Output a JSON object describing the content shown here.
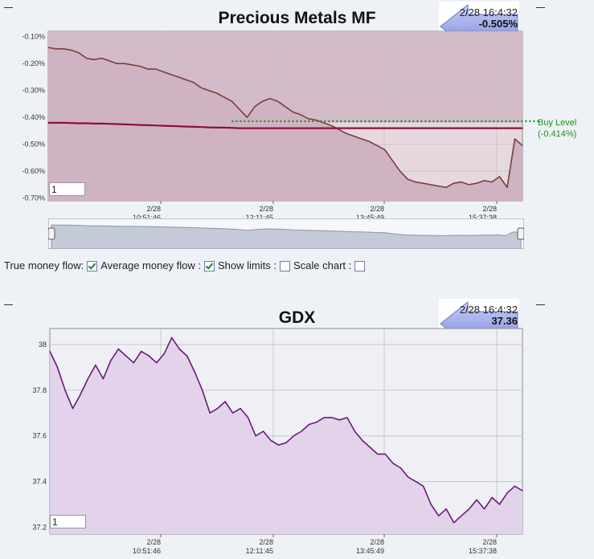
{
  "chart_data": [
    {
      "type": "area",
      "title": "Precious Metals MF",
      "callout": {
        "timestamp": "2/28 16:4:32",
        "value": "-0.505%"
      },
      "y_tick_labels": [
        "-0.10%",
        "-0.20%",
        "-0.30%",
        "-0.40%",
        "-0.50%",
        "-0.60%",
        "-0.70%"
      ],
      "x_tick_labels": [
        {
          "date": "2/28",
          "time": "10:51:46"
        },
        {
          "date": "2/28",
          "time": "12:11:45"
        },
        {
          "date": "2/28",
          "time": "13:45:49"
        },
        {
          "date": "2/28",
          "time": "15:37:38"
        }
      ],
      "ylim": [
        -0.71,
        -0.08
      ],
      "grid": true,
      "series": [
        {
          "name": "True money flow",
          "color": "#7a3d3d",
          "values": [
            -0.14,
            -0.145,
            -0.145,
            -0.15,
            -0.16,
            -0.18,
            -0.185,
            -0.18,
            -0.19,
            -0.2,
            -0.2,
            -0.205,
            -0.21,
            -0.22,
            -0.22,
            -0.23,
            -0.24,
            -0.25,
            -0.26,
            -0.27,
            -0.29,
            -0.3,
            -0.31,
            -0.325,
            -0.34,
            -0.37,
            -0.4,
            -0.36,
            -0.34,
            -0.33,
            -0.34,
            -0.36,
            -0.38,
            -0.39,
            -0.405,
            -0.41,
            -0.42,
            -0.43,
            -0.445,
            -0.46,
            -0.47,
            -0.48,
            -0.49,
            -0.505,
            -0.52,
            -0.56,
            -0.6,
            -0.63,
            -0.64,
            -0.645,
            -0.65,
            -0.655,
            -0.66,
            -0.645,
            -0.64,
            -0.65,
            -0.645,
            -0.635,
            -0.64,
            -0.62,
            -0.66,
            -0.48,
            -0.505
          ]
        },
        {
          "name": "Average money flow",
          "color": "#8b1040",
          "values": [
            -0.42,
            -0.42,
            -0.42,
            -0.421,
            -0.422,
            -0.422,
            -0.423,
            -0.423,
            -0.424,
            -0.425,
            -0.426,
            -0.427,
            -0.428,
            -0.429,
            -0.43,
            -0.431,
            -0.432,
            -0.433,
            -0.434,
            -0.435,
            -0.436,
            -0.437,
            -0.438,
            -0.438,
            -0.439,
            -0.44,
            -0.44,
            -0.44,
            -0.44,
            -0.44,
            -0.44,
            -0.44,
            -0.44,
            -0.44,
            -0.44,
            -0.44,
            -0.44,
            -0.44,
            -0.44,
            -0.44,
            -0.44,
            -0.44,
            -0.44,
            -0.44,
            -0.44,
            -0.44,
            -0.44,
            -0.44,
            -0.44,
            -0.44,
            -0.44,
            -0.44,
            -0.44,
            -0.44,
            -0.44,
            -0.44,
            -0.44,
            -0.44,
            -0.44,
            -0.44,
            -0.44,
            -0.44,
            -0.44
          ]
        }
      ],
      "buy_level": {
        "value": -0.414,
        "label": "Buy Level",
        "label_value": "(-0.414%)",
        "color": "#1f8f1f"
      },
      "zoom_value": "1",
      "controls": [
        {
          "label": "True money flow:",
          "checked": true
        },
        {
          "label": "Average money flow :",
          "checked": true
        },
        {
          "label": "Show limits :",
          "checked": false
        },
        {
          "label": "Scale chart :",
          "checked": false
        }
      ]
    },
    {
      "type": "area",
      "title": "GDX",
      "callout": {
        "timestamp": "2/28 16:4:32",
        "value": "37.36"
      },
      "y_tick_labels": [
        "38",
        "37.8",
        "37.6",
        "37.4",
        "37.2"
      ],
      "x_tick_labels": [
        {
          "date": "2/28",
          "time": "10:51:46"
        },
        {
          "date": "2/28",
          "time": "12:11:45"
        },
        {
          "date": "2/28",
          "time": "13:45:49"
        },
        {
          "date": "2/28",
          "time": "15:37:38"
        }
      ],
      "ylim": [
        37.17,
        38.07
      ],
      "grid": true,
      "series": [
        {
          "name": "GDX",
          "color": "#6a1a7a",
          "values": [
            37.97,
            37.9,
            37.8,
            37.72,
            37.78,
            37.85,
            37.91,
            37.85,
            37.93,
            37.98,
            37.95,
            37.92,
            37.97,
            37.95,
            37.92,
            37.96,
            38.03,
            37.98,
            37.95,
            37.88,
            37.8,
            37.7,
            37.72,
            37.75,
            37.7,
            37.72,
            37.68,
            37.6,
            37.62,
            37.58,
            37.56,
            37.57,
            37.6,
            37.62,
            37.65,
            37.66,
            37.68,
            37.68,
            37.67,
            37.68,
            37.62,
            37.58,
            37.55,
            37.52,
            37.52,
            37.48,
            37.46,
            37.42,
            37.4,
            37.38,
            37.3,
            37.25,
            37.28,
            37.22,
            37.25,
            37.28,
            37.32,
            37.28,
            37.33,
            37.3,
            37.35,
            37.38,
            37.36
          ]
        }
      ],
      "zoom_value": "1"
    }
  ]
}
